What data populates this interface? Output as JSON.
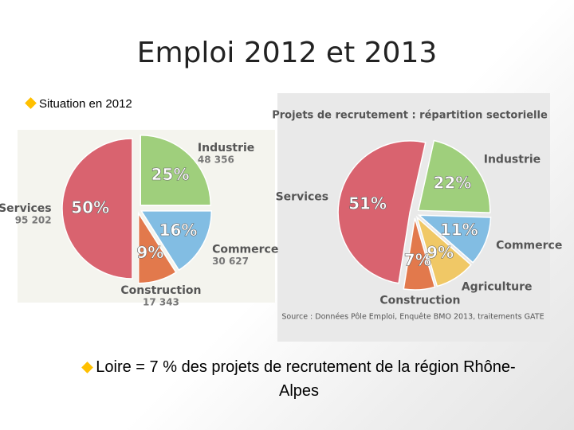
{
  "slide": {
    "title": "Emploi 2012 et 2013",
    "bullets": [
      "Situation en 2012",
      "Loire = 7 % des projets de recrutement de la région Rhône-Alpes"
    ]
  },
  "chart_data": [
    {
      "type": "pie",
      "categories": [
        "Services",
        "Industrie",
        "Commerce",
        "Construction"
      ],
      "values": [
        50,
        25,
        16,
        9
      ],
      "value_labels": [
        "50%",
        "25%",
        "16%",
        "9%"
      ],
      "counts": [
        {
          "value": 95202,
          "label": "95 202"
        },
        {
          "value": 48356,
          "label": "48 356"
        },
        {
          "value": 30627,
          "label": "30 627"
        },
        {
          "value": 17343,
          "label": "17 343"
        }
      ],
      "colors": [
        "#d9636f",
        "#9fcf7c",
        "#82bde3",
        "#e2794c"
      ]
    },
    {
      "type": "pie",
      "title": "Projets de recrutement : répartition sectorielle",
      "categories": [
        "Services",
        "Industrie",
        "Commerce",
        "Agriculture",
        "Construction"
      ],
      "values": [
        51,
        22,
        11,
        9,
        7
      ],
      "value_labels": [
        "51%",
        "22%",
        "11%",
        "9%",
        "7%"
      ],
      "colors": [
        "#d9636f",
        "#9fcf7c",
        "#82bde3",
        "#f0c866",
        "#e2794c"
      ],
      "source": "Source : Données Pôle Emploi, Enquête BMO 2013, traitements GATE"
    }
  ]
}
